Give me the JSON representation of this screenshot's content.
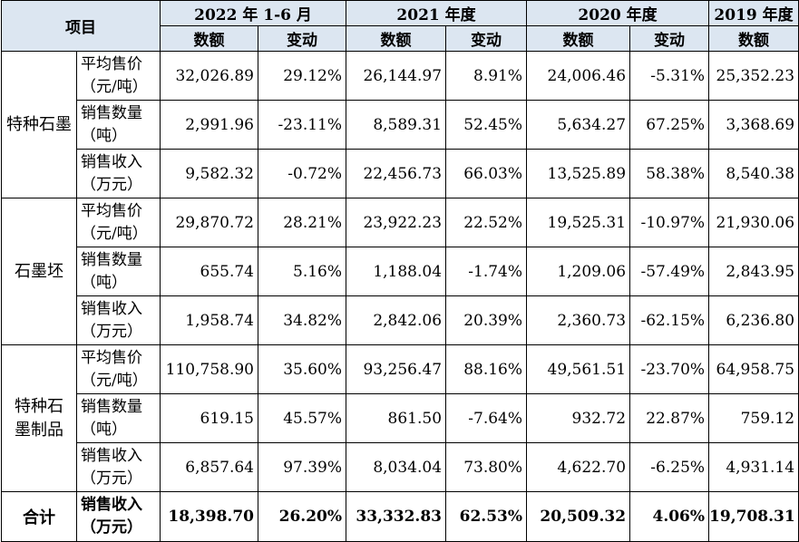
{
  "header": {
    "item_label": "项目",
    "periods": [
      "2022 年 1-6 月",
      "2021 年度",
      "2020 年度",
      "2019 年度"
    ],
    "amount_label": "数额",
    "change_label": "变动"
  },
  "groups": [
    {
      "name_lines": [
        "特种石墨"
      ],
      "rows": [
        {
          "metric": [
            "平均售价",
            "（元/吨）"
          ],
          "values": [
            "32,026.89",
            "29.12%",
            "26,144.97",
            "8.91%",
            "24,006.46",
            "-5.31%",
            "25,352.23"
          ]
        },
        {
          "metric": [
            "销售数量",
            "（吨）"
          ],
          "values": [
            "2,991.96",
            "-23.11%",
            "8,589.31",
            "52.45%",
            "5,634.27",
            "67.25%",
            "3,368.69"
          ]
        },
        {
          "metric": [
            "销售收入",
            "（万元）"
          ],
          "values": [
            "9,582.32",
            "-0.72%",
            "22,456.73",
            "66.03%",
            "13,525.89",
            "58.38%",
            "8,540.38"
          ]
        }
      ]
    },
    {
      "name_lines": [
        "石墨坯"
      ],
      "rows": [
        {
          "metric": [
            "平均售价",
            "（元/吨）"
          ],
          "values": [
            "29,870.72",
            "28.21%",
            "23,922.23",
            "22.52%",
            "19,525.31",
            "-10.97%",
            "21,930.06"
          ]
        },
        {
          "metric": [
            "销售数量",
            "（吨）"
          ],
          "values": [
            "655.74",
            "5.16%",
            "1,188.04",
            "-1.74%",
            "1,209.06",
            "-57.49%",
            "2,843.95"
          ]
        },
        {
          "metric": [
            "销售收入",
            "（万元）"
          ],
          "values": [
            "1,958.74",
            "34.82%",
            "2,842.06",
            "20.39%",
            "2,360.73",
            "-62.15%",
            "6,236.80"
          ]
        }
      ]
    },
    {
      "name_lines": [
        "特种石",
        "墨制品"
      ],
      "rows": [
        {
          "metric": [
            "平均售价",
            "（元/吨）"
          ],
          "values": [
            "110,758.90",
            "35.60%",
            "93,256.47",
            "88.16%",
            "49,561.51",
            "-23.70%",
            "64,958.75"
          ]
        },
        {
          "metric": [
            "销售数量",
            "（吨）"
          ],
          "values": [
            "619.15",
            "45.57%",
            "861.50",
            "-7.64%",
            "932.72",
            "22.87%",
            "759.12"
          ]
        },
        {
          "metric": [
            "销售收入",
            "（万元）"
          ],
          "values": [
            "6,857.64",
            "97.39%",
            "8,034.04",
            "73.80%",
            "4,622.70",
            "-6.25%",
            "4,931.14"
          ]
        }
      ]
    }
  ],
  "total": {
    "label": "合计",
    "metric": [
      "销售收入",
      "（万元）"
    ],
    "values": [
      "18,398.70",
      "26.20%",
      "33,332.83",
      "62.53%",
      "20,509.32",
      "4.06%",
      "19,708.31"
    ]
  }
}
